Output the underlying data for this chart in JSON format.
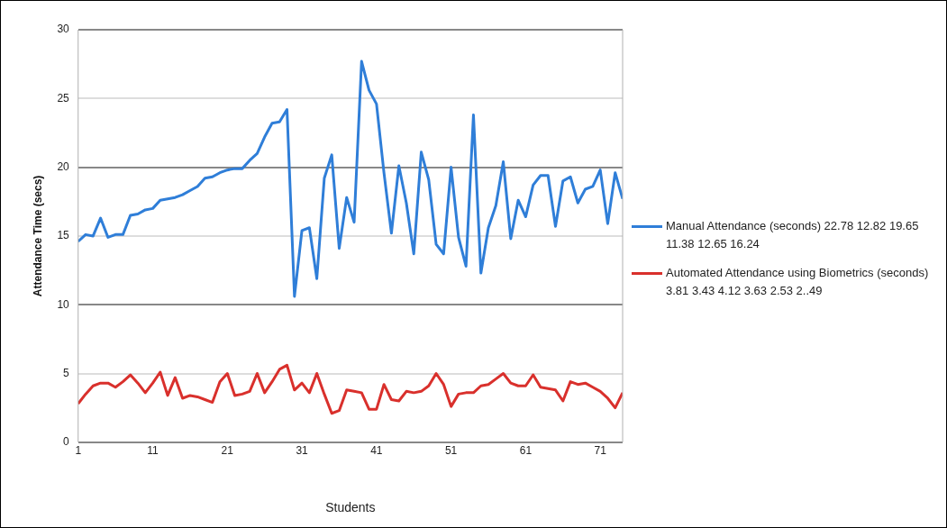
{
  "chart_data": {
    "type": "line",
    "xlabel": "Students",
    "ylabel": "Attendance Time (secs)",
    "x": [
      1,
      2,
      3,
      4,
      5,
      6,
      7,
      8,
      9,
      10,
      11,
      12,
      13,
      14,
      15,
      16,
      17,
      18,
      19,
      20,
      21,
      22,
      23,
      24,
      25,
      26,
      27,
      28,
      29,
      30,
      31,
      32,
      33,
      34,
      35,
      36,
      37,
      38,
      39,
      40,
      41,
      42,
      43,
      44,
      45,
      46,
      47,
      48,
      49,
      50,
      51,
      52,
      53,
      54,
      55,
      56,
      57,
      58,
      59,
      60,
      61,
      62,
      63,
      64,
      65,
      66,
      67,
      68,
      69,
      70,
      71,
      72,
      73,
      74
    ],
    "xlim": [
      1,
      74
    ],
    "xticks": [
      1,
      11,
      21,
      31,
      41,
      51,
      61,
      71
    ],
    "ylim": [
      0,
      30
    ],
    "yticks": [
      0,
      5,
      10,
      15,
      20,
      25,
      30
    ],
    "grid": "y",
    "legend": "right",
    "marker": "none",
    "line_style": "solid",
    "series": [
      {
        "name": "Manual Attendance (seconds) 22.78 12.82 19.65 11.38 12.65 16.24",
        "color": "#2f7ed8",
        "values": [
          14.6,
          15.1,
          15.0,
          16.3,
          14.9,
          15.1,
          15.1,
          16.5,
          16.6,
          16.9,
          17.0,
          17.6,
          17.7,
          17.8,
          18.0,
          18.3,
          18.6,
          19.2,
          19.3,
          19.6,
          19.8,
          19.9,
          19.9,
          20.5,
          21.0,
          22.2,
          23.2,
          23.3,
          24.2,
          10.6,
          15.4,
          15.6,
          11.9,
          19.2,
          20.9,
          14.1,
          17.8,
          16.0,
          27.7,
          25.6,
          24.6,
          19.6,
          15.2,
          20.1,
          17.4,
          13.7,
          21.1,
          19.1,
          14.4,
          13.7,
          20.0,
          14.9,
          12.8,
          23.8,
          12.3,
          15.6,
          17.2,
          20.4,
          14.8,
          17.6,
          16.4,
          18.7,
          19.4,
          19.4,
          15.7,
          19.0,
          19.3,
          17.4,
          18.4,
          18.6,
          19.8,
          15.9,
          19.6,
          17.7
        ]
      },
      {
        "name": "Automated Attendance using Biometrics (seconds) 3.81 3.43 4.12 3.63 2.53 2..49",
        "color": "#d9302c",
        "values": [
          2.8,
          3.5,
          4.1,
          4.3,
          4.3,
          4.0,
          4.4,
          4.9,
          4.3,
          3.6,
          4.3,
          5.1,
          3.4,
          4.7,
          3.2,
          3.4,
          3.3,
          3.1,
          2.9,
          4.4,
          5.0,
          3.4,
          3.5,
          3.7,
          5.0,
          3.6,
          4.4,
          5.3,
          5.6,
          3.8,
          4.3,
          3.6,
          5.0,
          3.5,
          2.1,
          2.3,
          3.8,
          3.7,
          3.6,
          2.4,
          2.4,
          4.2,
          3.1,
          3.0,
          3.7,
          3.6,
          3.7,
          4.1,
          5.0,
          4.2,
          2.6,
          3.5,
          3.6,
          3.6,
          4.1,
          4.2,
          4.6,
          5.0,
          4.3,
          4.1,
          4.1,
          4.9,
          4.0,
          3.9,
          3.8,
          3.0,
          4.4,
          4.2,
          4.3,
          4.0,
          3.7,
          3.2,
          2.5,
          3.6
        ]
      }
    ]
  }
}
